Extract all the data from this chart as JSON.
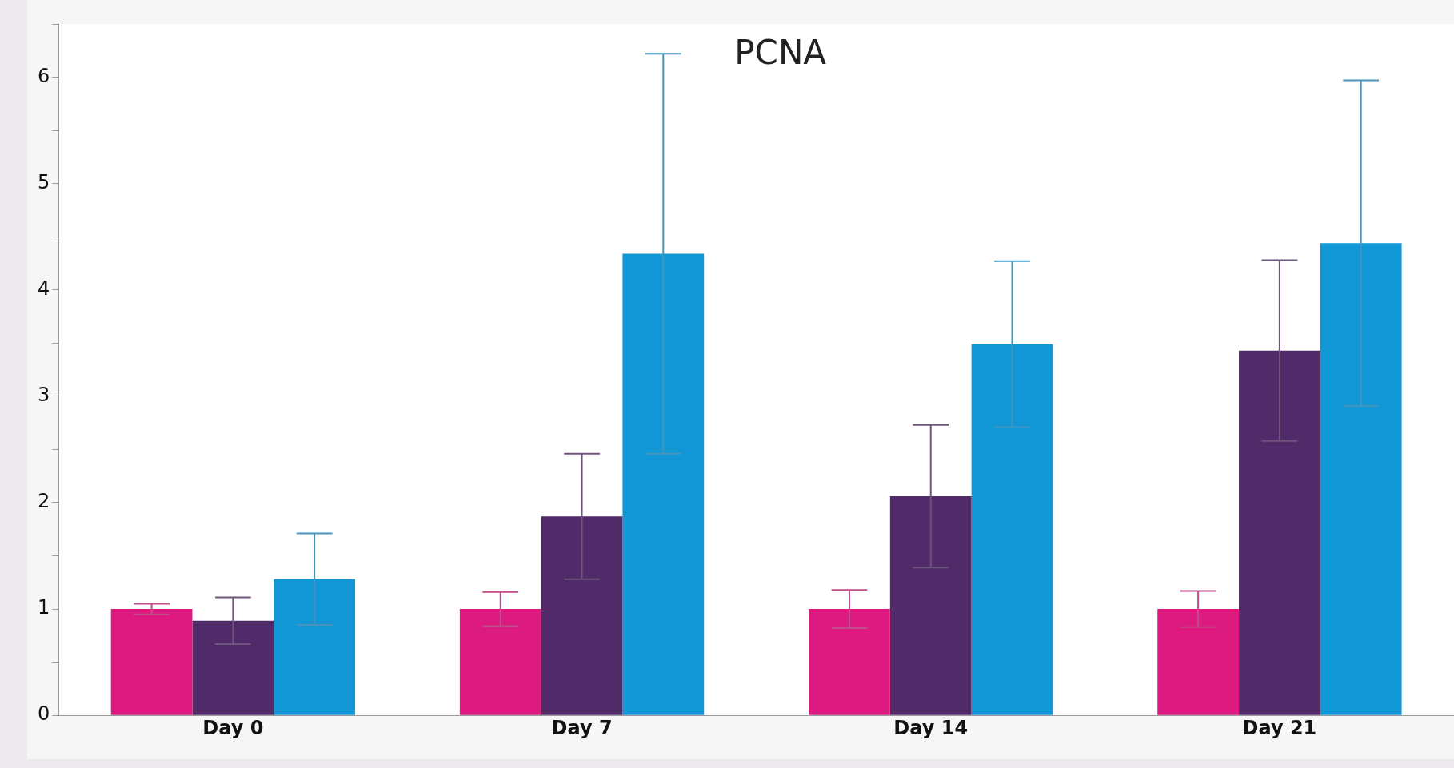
{
  "chart_data": {
    "type": "bar",
    "title": "PCNA",
    "categories": [
      "Day 0",
      "Day 7",
      "Day 14",
      "Day 21"
    ],
    "series": [
      {
        "color": "#dc1a80",
        "values": [
          1.0,
          1.0,
          1.0,
          1.0
        ],
        "errors": [
          0.05,
          0.16,
          0.18,
          0.17
        ]
      },
      {
        "color": "#512a69",
        "values": [
          0.89,
          1.87,
          2.06,
          3.43
        ],
        "errors": [
          0.22,
          0.59,
          0.67,
          0.85
        ]
      },
      {
        "color": "#1196d6",
        "values": [
          1.28,
          4.34,
          3.49,
          4.44
        ],
        "errors": [
          0.43,
          1.88,
          0.78,
          1.53
        ]
      }
    ],
    "ylim": [
      0,
      6.5
    ],
    "yticks": [
      0,
      {
        "value": 0.5,
        "label": null
      },
      1,
      {
        "value": 1.5,
        "label": null
      },
      2,
      {
        "value": 2.5,
        "label": null
      },
      3,
      {
        "value": 3.5,
        "label": null
      },
      4,
      {
        "value": 4.5,
        "label": null
      },
      5,
      {
        "value": 5.5,
        "label": null
      },
      6,
      {
        "value": 6.5,
        "label": null
      }
    ],
    "grid": false,
    "legend": false
  }
}
